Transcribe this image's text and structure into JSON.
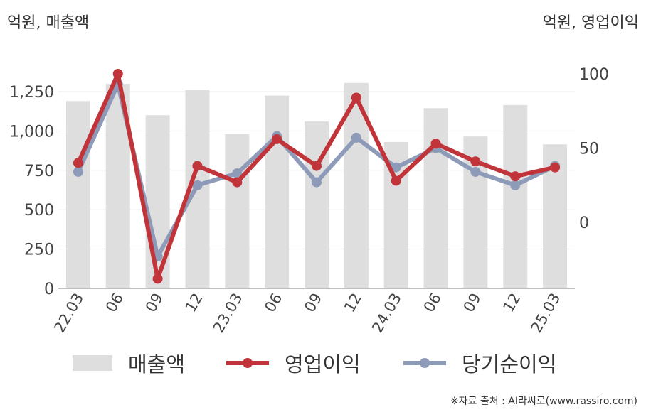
{
  "units": {
    "left": "억원, 매출액",
    "right": "억원, 영업이익"
  },
  "source": "※자료 출처 : AI라씨로(www.rassiro.com)",
  "colors": {
    "revenue": "#dedede",
    "operating_profit": "#c0343a",
    "net_income": "#8e9bb8",
    "axis": "#aaaaaa",
    "grid": "#ececec"
  },
  "legend": [
    {
      "label": "매출액",
      "kind": "bar",
      "series": "revenue"
    },
    {
      "label": "영업이익",
      "kind": "line",
      "series": "operating_profit"
    },
    {
      "label": "당기순이익",
      "kind": "line",
      "series": "net_income"
    }
  ],
  "chart_data": {
    "type": "bar",
    "categories": [
      "22.03",
      "06",
      "09",
      "12",
      "23.03",
      "06",
      "09",
      "12",
      "24.03",
      "06",
      "09",
      "12",
      "25.03"
    ],
    "series": [
      {
        "name": "매출액",
        "kind": "bar",
        "axis": "left",
        "values": [
          1190,
          1300,
          1100,
          1260,
          980,
          1225,
          1060,
          1305,
          930,
          1145,
          965,
          1165,
          915
        ]
      },
      {
        "name": "영업이익",
        "kind": "line",
        "axis": "right",
        "values": [
          40,
          100,
          -38,
          38,
          27,
          56,
          38,
          84,
          28,
          53,
          41,
          31,
          37
        ]
      },
      {
        "name": "당기순이익",
        "kind": "line",
        "axis": "right",
        "values": [
          34,
          93,
          -23,
          25,
          33,
          58,
          27,
          57,
          37,
          50,
          34,
          25,
          38
        ]
      }
    ],
    "y_left": {
      "ticks": [
        "0",
        "250",
        "500",
        "750",
        "1,000",
        "1,250"
      ],
      "range": [
        0,
        1250
      ]
    },
    "y_right": {
      "ticks": [
        "0",
        "50",
        "100"
      ],
      "range": [
        0,
        100
      ]
    },
    "grid": true,
    "legend_position": "bottom"
  }
}
